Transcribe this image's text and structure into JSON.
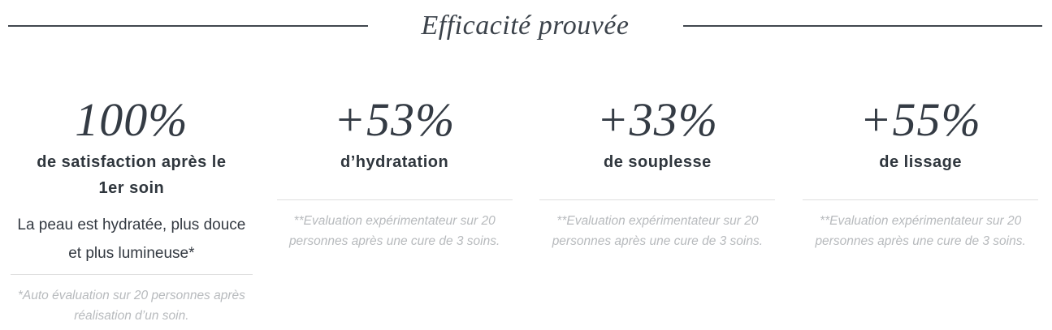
{
  "header": {
    "title": "Efficacité prouvée"
  },
  "stats": [
    {
      "value": "100%",
      "label": "de satisfaction après le 1er soin",
      "description": "La peau est hydratée, plus douce et plus lumineuse*",
      "footnote": "*Auto évaluation sur 20 personnes après réalisation d’un soin."
    },
    {
      "value": "+53%",
      "label": "d’hydratation",
      "footnote": "**Evaluation expérimentateur sur 20 personnes après une cure de 3 soins."
    },
    {
      "value": "+33%",
      "label": "de souplesse",
      "footnote": "**Evaluation expérimentateur sur 20 personnes après une cure de 3 soins."
    },
    {
      "value": "+55%",
      "label": "de lissage",
      "footnote": "**Evaluation expérimentateur sur 20 personnes après une cure de 3 soins."
    }
  ],
  "colors": {
    "heading_text": "#3b424a",
    "stat_value_text": "#343b44",
    "label_text": "#2f363d",
    "body_text": "#333941",
    "footnote_text": "#b7babd",
    "divider": "#dedede",
    "header_rule": "#41474e",
    "background": "#ffffff"
  }
}
